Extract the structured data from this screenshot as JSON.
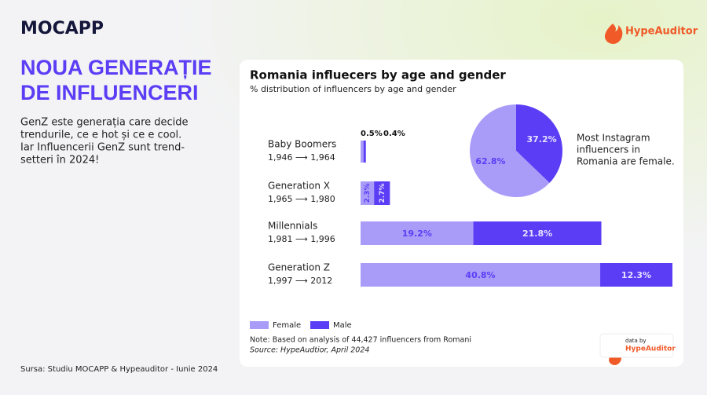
{
  "logo": "MOCAPP",
  "brand": "HypeAuditor",
  "headline": [
    "NOUA GENERAȚIE",
    "DE INFLUENCERI"
  ],
  "body": [
    "GenZ este generația care decide",
    "trendurile, ce e hot și ce e cool.",
    "Iar Influencerii GenZ sunt trend-",
    "setteri în 2024!"
  ],
  "footer_source": "Sursa: Studiu MOCAPP & Hypeauditor - Iunie 2024",
  "chart_data": [
    {
      "type": "stacked-bar-horizontal",
      "title": "Romania influecers by age and gender",
      "subtitle": "% distribution of influencers by age and gender",
      "categories": [
        "Baby Boomers",
        "Generation X",
        "Millennials",
        "Generation Z"
      ],
      "category_ranges": [
        "1,946 ⟶ 1,964",
        "1,965 ⟶ 1,980",
        "1,981 ⟶ 1,996",
        "1,997 ⟶ 2012"
      ],
      "series": [
        {
          "name": "Female",
          "color": "#a99cf9",
          "values": [
            0.5,
            2.3,
            19.2,
            40.8
          ],
          "value_labels": [
            "0.5%",
            "2.3%",
            "19.2%",
            "40.8%"
          ]
        },
        {
          "name": "Male",
          "color": "#5b3df5",
          "values": [
            0.4,
            2.7,
            21.8,
            12.3
          ],
          "value_labels": [
            "0.4%",
            "2.7%",
            "21.8%",
            "12.3%"
          ]
        }
      ],
      "legend": "bottom-left",
      "note": "Note: Based on analysis of 44,427 influencers from Romani",
      "source": "Source: HypeAudtior, April 2024",
      "badge": [
        "data by",
        "HypeAuditor"
      ]
    },
    {
      "type": "pie",
      "categories": [
        "Female",
        "Male"
      ],
      "values": [
        62.8,
        37.2
      ],
      "value_labels": [
        "62.8%",
        "37.2%"
      ],
      "colors": [
        "#a99cf9",
        "#5b3df5"
      ],
      "annotation": [
        "Most Instagram",
        "influencers in",
        "Romania are female."
      ]
    }
  ]
}
